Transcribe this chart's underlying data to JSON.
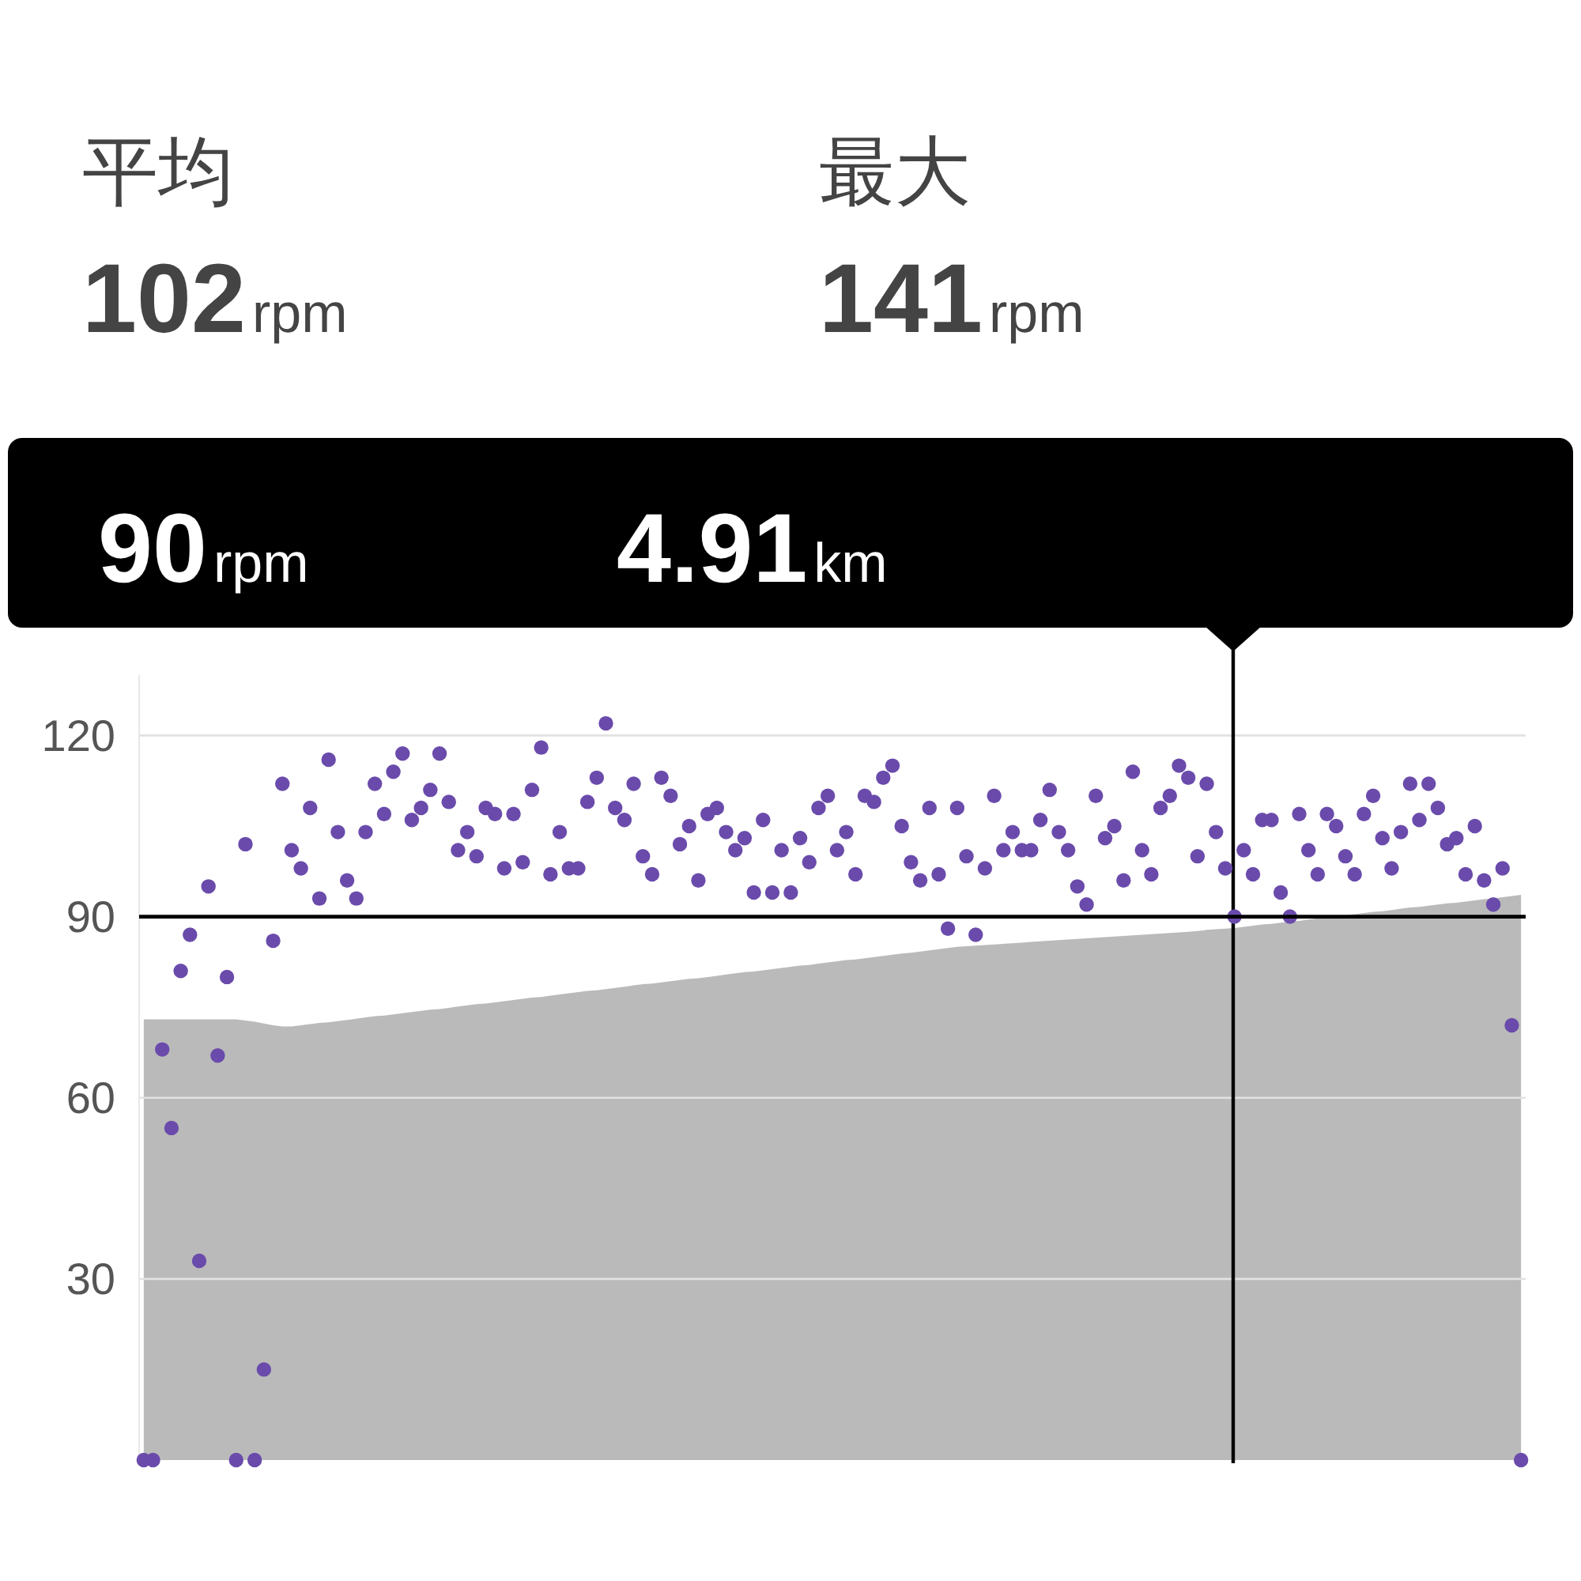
{
  "chart_data": {
    "type": "scatter",
    "annotations": [
      "平均",
      "102rpm",
      "最大",
      "141rpm",
      "90rpm",
      "4.91km"
    ],
    "categories": [
      null,
      null,
      null,
      null,
      null,
      null,
      null,
      null,
      null,
      null,
      null,
      null,
      null,
      null,
      null,
      null,
      null,
      null,
      null,
      null,
      null,
      null,
      null,
      null,
      null,
      null,
      null,
      null,
      null,
      null,
      null,
      null,
      null,
      null,
      null,
      null,
      null,
      null,
      null,
      null,
      null,
      null,
      null,
      null,
      null,
      null,
      null,
      null,
      null,
      null,
      null,
      null,
      null,
      null,
      null,
      null,
      null,
      null,
      null,
      null,
      null,
      null,
      null,
      null,
      null,
      null,
      null,
      null,
      null,
      null,
      null,
      null,
      null,
      null,
      null,
      null,
      null,
      null,
      null,
      null,
      null,
      null,
      null,
      null,
      null,
      null,
      null,
      null,
      null,
      null,
      null,
      null,
      null,
      null,
      null,
      null,
      null,
      null,
      null,
      null,
      null,
      null,
      null,
      null,
      null,
      null,
      null,
      null,
      null,
      null,
      null,
      null,
      null,
      null,
      null,
      null,
      null,
      null,
      null,
      null,
      null,
      null,
      null,
      null,
      null,
      null,
      null,
      null,
      null,
      null,
      null,
      null,
      null,
      null,
      null,
      null,
      null,
      null,
      null,
      null,
      null,
      null,
      null,
      null,
      null,
      null,
      null,
      null,
      null,
      null
    ],
    "series": [
      {
        "type": "area",
        "color": "#bababa",
        "values": [
          73,
          73,
          73,
          73,
          73,
          73,
          73,
          73,
          73,
          73,
          73,
          72.8,
          72.6,
          72.3,
          72,
          71.8,
          71.8,
          72,
          72.2,
          72.4,
          72.5,
          72.7,
          72.9,
          73.1,
          73.3,
          73.5,
          73.6,
          73.8,
          74,
          74.2,
          74.4,
          74.6,
          74.7,
          74.9,
          75.1,
          75.3,
          75.5,
          75.6,
          75.8,
          76,
          76.2,
          76.4,
          76.6,
          76.7,
          76.9,
          77.1,
          77.3,
          77.5,
          77.7,
          77.8,
          78,
          78.2,
          78.4,
          78.6,
          78.8,
          78.9,
          79.1,
          79.3,
          79.5,
          79.7,
          79.8,
          80,
          80.2,
          80.4,
          80.6,
          80.8,
          80.9,
          81.1,
          81.3,
          81.5,
          81.7,
          81.9,
          82,
          82.2,
          82.4,
          82.6,
          82.8,
          82.9,
          83.1,
          83.3,
          83.5,
          83.7,
          83.9,
          84,
          84.2,
          84.4,
          84.6,
          84.8,
          85,
          85.1,
          85.2,
          85.3,
          85.4,
          85.5,
          85.6,
          85.7,
          85.8,
          85.9,
          86,
          86.1,
          86.2,
          86.3,
          86.4,
          86.5,
          86.6,
          86.7,
          86.8,
          86.9,
          87,
          87.1,
          87.2,
          87.3,
          87.4,
          87.5,
          87.6,
          87.8,
          87.9,
          88,
          88.1,
          88.3,
          88.5,
          88.7,
          88.8,
          89,
          89.2,
          89.3,
          89.5,
          89.7,
          89.9,
          90,
          90.2,
          90.4,
          90.6,
          90.8,
          90.9,
          91.1,
          91.3,
          91.5,
          91.6,
          91.8,
          92,
          92.2,
          92.3,
          92.5,
          92.7,
          92.9,
          93,
          93.2,
          93.4,
          93.6
        ]
      },
      {
        "color": "#6a4bab",
        "marker": "circle",
        "values": [
          0,
          0,
          68,
          55,
          81,
          87,
          33,
          95,
          67,
          80,
          0,
          102,
          0,
          15,
          86,
          112,
          101,
          98,
          108,
          93,
          116,
          104,
          96,
          93,
          104,
          112,
          107,
          114,
          117,
          106,
          108,
          111,
          117,
          109,
          101,
          104,
          100,
          108,
          107,
          98,
          107,
          99,
          111,
          118,
          97,
          104,
          98,
          98,
          109,
          113,
          122,
          108,
          106,
          112,
          100,
          97,
          113,
          110,
          102,
          105,
          96,
          107,
          108,
          104,
          101,
          103,
          94,
          106,
          94,
          101,
          94,
          103,
          99,
          108,
          110,
          101,
          104,
          97,
          110,
          109,
          113,
          115,
          105,
          99,
          96,
          108,
          97,
          88,
          108,
          100,
          87,
          98,
          110,
          101,
          104,
          101,
          101,
          106,
          111,
          104,
          101,
          95,
          92,
          110,
          103,
          105,
          96,
          114,
          101,
          97,
          108,
          110,
          115,
          113,
          100,
          112,
          104,
          98,
          90,
          101,
          97,
          106,
          106,
          94,
          90,
          107,
          101,
          97,
          107,
          105,
          100,
          97,
          107,
          110,
          103,
          98,
          104,
          112,
          106,
          112,
          108,
          102,
          103,
          97,
          105,
          96,
          92,
          98,
          72,
          0
        ]
      }
    ],
    "ylim": [
      0,
      130
    ],
    "yticks": [
      30,
      60,
      90,
      120
    ],
    "grid": "y",
    "ref_lines": [
      {
        "axis": "y",
        "value": 90,
        "color": "#000000"
      }
    ]
  }
}
